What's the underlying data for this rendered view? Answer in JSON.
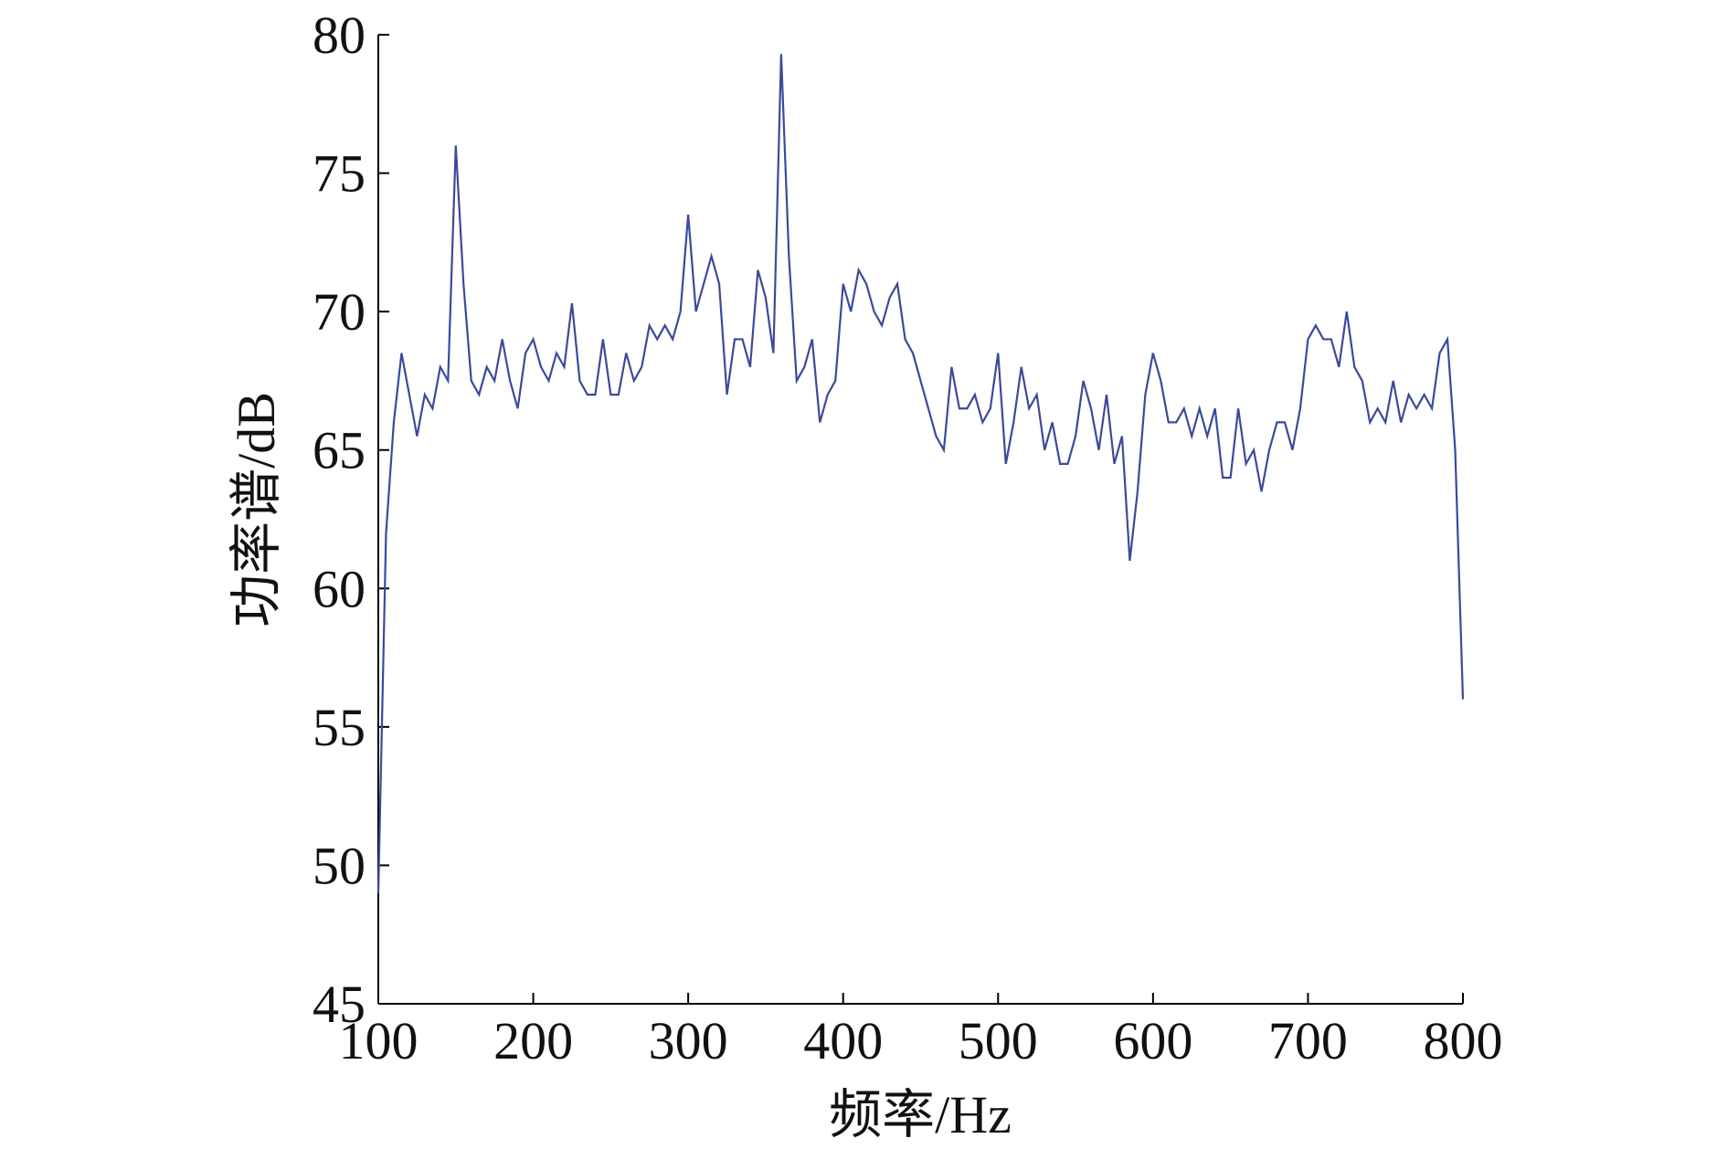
{
  "chart_data": {
    "type": "line",
    "x_label": "频率/Hz",
    "y_label": "功率谱/dB",
    "xlim": [
      100,
      800
    ],
    "xticks": [
      100,
      200,
      300,
      400,
      500,
      600,
      700,
      800
    ],
    "ylim": [
      45,
      80
    ],
    "yticks": [
      45,
      50,
      55,
      60,
      65,
      70,
      75,
      80
    ],
    "grid": false,
    "series": [
      {
        "color": "#3b4a9a",
        "x": [
          100,
          105,
          110,
          115,
          120,
          125,
          130,
          135,
          140,
          145,
          150,
          155,
          160,
          165,
          170,
          175,
          180,
          185,
          190,
          195,
          200,
          205,
          210,
          215,
          220,
          225,
          230,
          235,
          240,
          245,
          250,
          255,
          260,
          265,
          270,
          275,
          280,
          285,
          290,
          295,
          300,
          305,
          310,
          315,
          320,
          325,
          330,
          335,
          340,
          345,
          350,
          355,
          360,
          365,
          370,
          375,
          380,
          385,
          390,
          395,
          400,
          405,
          410,
          415,
          420,
          425,
          430,
          435,
          440,
          445,
          450,
          455,
          460,
          465,
          470,
          475,
          480,
          485,
          490,
          495,
          500,
          505,
          510,
          515,
          520,
          525,
          530,
          535,
          540,
          545,
          550,
          555,
          560,
          565,
          570,
          575,
          580,
          585,
          590,
          595,
          600,
          605,
          610,
          615,
          620,
          625,
          630,
          635,
          640,
          645,
          650,
          655,
          660,
          665,
          670,
          675,
          680,
          685,
          690,
          695,
          700,
          705,
          710,
          715,
          720,
          725,
          730,
          735,
          740,
          745,
          750,
          755,
          760,
          765,
          770,
          775,
          780,
          785,
          790,
          795,
          800
        ],
        "values": [
          49,
          62,
          66,
          68.5,
          67,
          65.5,
          67,
          66.5,
          68,
          67.5,
          76,
          71,
          67.5,
          67,
          68,
          67.5,
          69,
          67.5,
          66.5,
          68.5,
          69,
          68,
          67.5,
          68.5,
          68,
          70.3,
          67.5,
          67,
          67,
          69,
          67,
          67,
          68.5,
          67.5,
          68,
          69.5,
          69,
          69.5,
          69,
          70,
          73.5,
          70,
          71,
          72,
          71,
          67,
          69,
          69,
          68,
          71.5,
          70.5,
          68.5,
          79.3,
          72,
          67.5,
          68,
          69,
          66,
          67,
          67.5,
          71,
          70,
          71.5,
          71,
          70,
          69.5,
          70.5,
          71,
          69,
          68.5,
          67.5,
          66.5,
          65.5,
          65,
          68,
          66.5,
          66.5,
          67,
          66,
          66.5,
          68.5,
          64.5,
          66,
          68,
          66.5,
          67,
          65,
          66,
          64.5,
          64.5,
          65.5,
          67.5,
          66.5,
          65,
          67,
          64.5,
          65.5,
          61,
          63.5,
          67,
          68.5,
          67.5,
          66,
          66,
          66.5,
          65.5,
          66.5,
          65.5,
          66.5,
          64,
          64,
          66.5,
          64.5,
          65,
          63.5,
          65,
          66,
          66,
          65,
          66.5,
          69,
          69.5,
          69,
          69,
          68,
          70,
          68,
          67.5,
          66,
          66.5,
          66,
          67.5,
          66,
          67,
          66.5,
          67,
          66.5,
          68.5,
          69,
          65,
          56
        ]
      }
    ]
  }
}
